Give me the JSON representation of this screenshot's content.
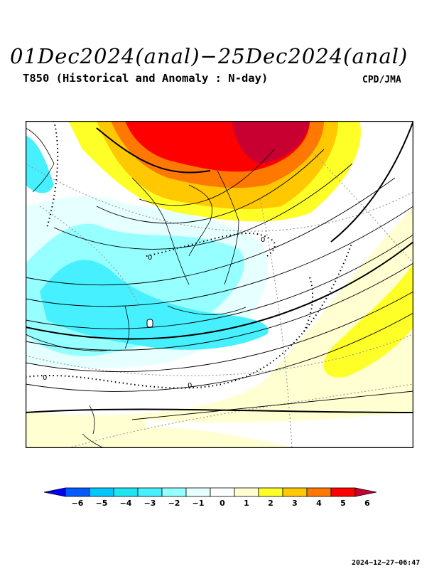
{
  "header": {
    "title": "01Dec2024(anal)−25Dec2024(anal)",
    "subtitle": "T850 (Historical and Anomaly : N-day)",
    "agency": "CPD/JMA"
  },
  "map": {
    "contour_labels": [
      "0",
      "0",
      "0",
      "0"
    ]
  },
  "colorbar": {
    "ticks": [
      "−6",
      "−5",
      "−4",
      "−3",
      "−2",
      "−1",
      "0",
      "1",
      "2",
      "3",
      "4",
      "5",
      "6"
    ],
    "colors": [
      "#0000ff",
      "#005aff",
      "#00c8ff",
      "#1ee6f0",
      "#46f0ff",
      "#96ffff",
      "#e6ffff",
      "#ffffff",
      "#ffffd2",
      "#ffff28",
      "#ffc800",
      "#ff7800",
      "#ff0000",
      "#c80032"
    ]
  },
  "footer": {
    "timestamp": "2024−12−27−06:47"
  }
}
